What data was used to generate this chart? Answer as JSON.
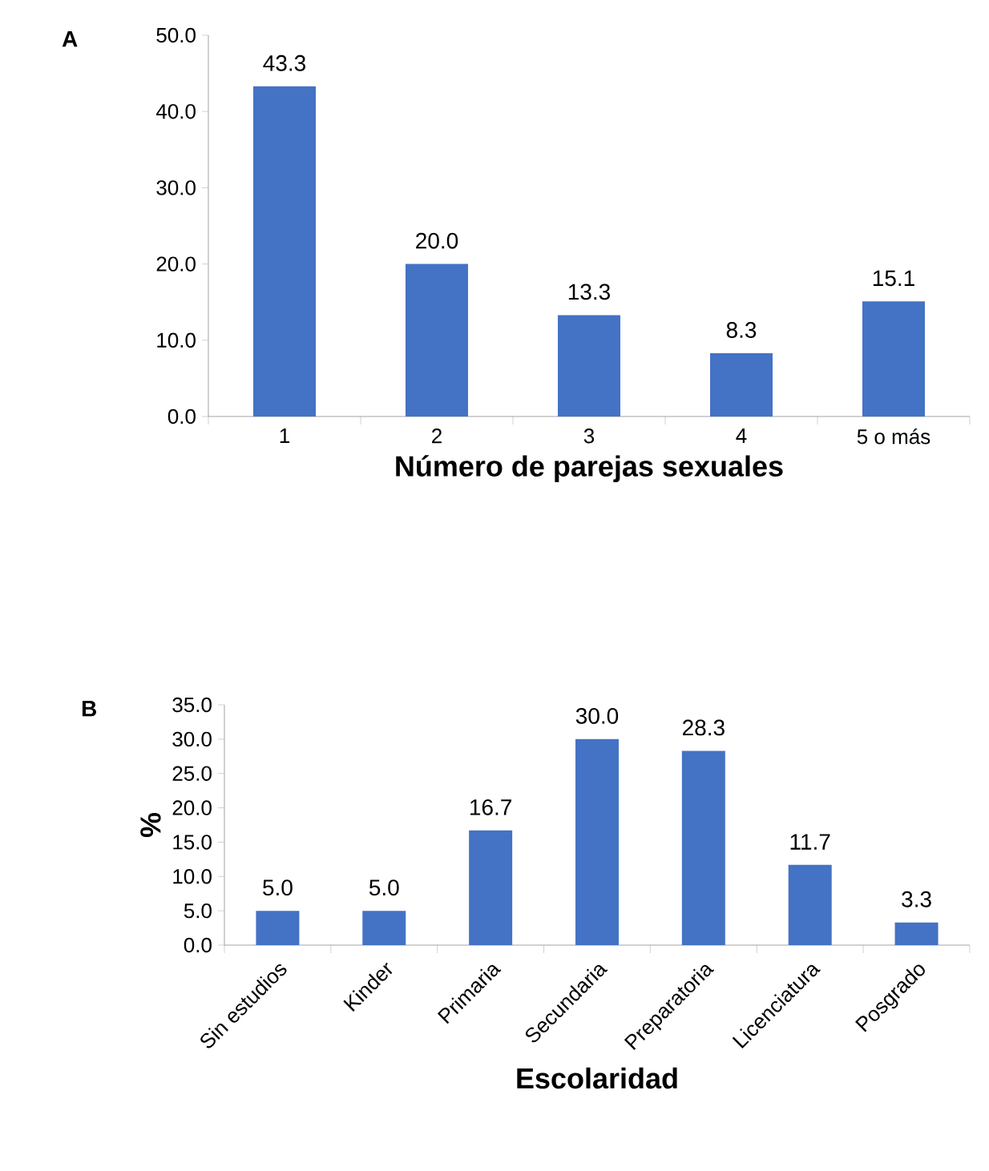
{
  "chart_data": [
    {
      "type": "bar",
      "title": "A",
      "xlabel": "Número de parejas sexuales",
      "categories": [
        "1",
        "2",
        "3",
        "4",
        "5 o más"
      ],
      "values": [
        43.3,
        20,
        13.3,
        8.3,
        15.1
      ],
      "value_labels": [
        "43.3",
        "20.0",
        "13.3",
        "8.3",
        "15.1"
      ],
      "color": "#4472c4",
      "ylim": [
        0,
        50
      ],
      "yticks": [
        {
          "value": 0,
          "label": "0.0"
        },
        {
          "value": 10,
          "label": "10.0"
        },
        {
          "value": 20,
          "label": "20.0"
        },
        {
          "value": 30,
          "label": "30.0"
        },
        {
          "value": 40,
          "label": "40.0"
        },
        {
          "value": 50,
          "label": "50.0"
        }
      ]
    },
    {
      "type": "bar",
      "title": "B",
      "xlabel": "Escolaridad",
      "ylabel": "%",
      "categories": [
        "Sin estudios",
        "Kinder",
        "Primaria",
        "Secundaria",
        "Preparatoria",
        "Licenciatura",
        "Posgrado"
      ],
      "values": [
        5,
        5,
        16.7,
        30,
        28.3,
        11.7,
        3.3
      ],
      "value_labels": [
        "5.0",
        "5.0",
        "16.7",
        "30.0",
        "28.3",
        "11.7",
        "3.3"
      ],
      "color": "#4472c4",
      "ylim": [
        0,
        35
      ],
      "yticks": [
        {
          "value": 0,
          "label": "0.0"
        },
        {
          "value": 5,
          "label": "5.0"
        },
        {
          "value": 10,
          "label": "10.0"
        },
        {
          "value": 15,
          "label": "15.0"
        },
        {
          "value": 20,
          "label": "20.0"
        },
        {
          "value": 25,
          "label": "25.0"
        },
        {
          "value": 30,
          "label": "30.0"
        },
        {
          "value": 35,
          "label": "35.0"
        }
      ]
    }
  ]
}
